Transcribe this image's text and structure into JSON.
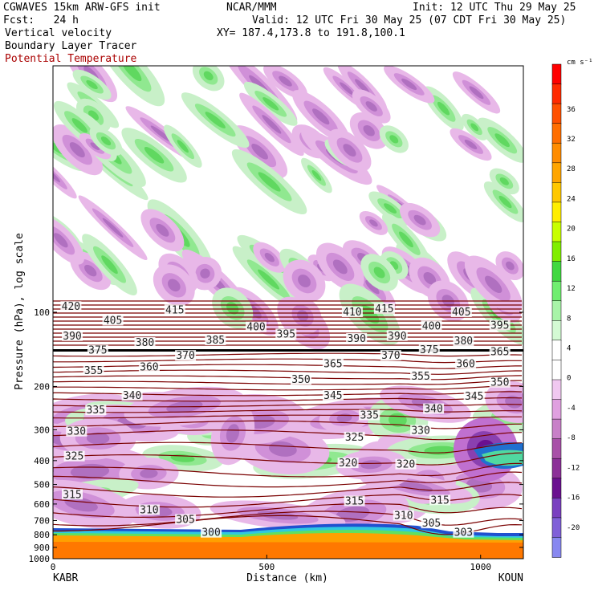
{
  "header": {
    "model": "CGWAVES 15km ARW-GFS init",
    "center": "NCAR/MMM",
    "init": "Init: 12 UTC Thu 29 May 25",
    "fcst": "Fcst:   24 h",
    "valid": "Valid: 12 UTC Fri 30 May 25 (07 CDT Fri 30 May 25)",
    "field1": "Vertical velocity",
    "xy": "XY= 187.4,173.8 to 191.8,100.1",
    "field2": "Boundary Layer Tracer",
    "field3": "Potential Temperature"
  },
  "colors": {
    "theta_contour": "#7a0000",
    "text": "#000000"
  },
  "chart_data": {
    "type": "heatmap",
    "xlabel": "Distance (km)",
    "ylabel": "Pressure (hPa), log scale",
    "x_ticks": [
      0,
      500,
      1000
    ],
    "xlim": [
      0,
      1100
    ],
    "y_ticks": [
      100,
      200,
      300,
      400,
      500,
      600,
      700,
      800,
      900,
      1000
    ],
    "y_scale": "log",
    "ylim": [
      1000,
      10
    ],
    "endpoints": {
      "left": "KABR",
      "right": "KOUN"
    },
    "colorbar": {
      "unit": "cm s⁻¹",
      "labels": [
        36,
        32,
        28,
        24,
        20,
        16,
        12,
        8,
        4,
        0,
        -4,
        -8,
        -12,
        -16,
        -20
      ],
      "colors": [
        "#ff0000",
        "#ff2a00",
        "#ff5000",
        "#ff6e00",
        "#ff8c00",
        "#ffa500",
        "#ffc800",
        "#ffee00",
        "#c8ff00",
        "#80ee00",
        "#40d840",
        "#70ee70",
        "#a8f4a8",
        "#d4fad4",
        "#ffffff",
        "#ffffff",
        "#f0c8f0",
        "#e0a0e0",
        "#c880c8",
        "#a850a8",
        "#8c3098",
        "#6a1090",
        "#7a40c0",
        "#8060d8",
        "#8888f0"
      ]
    },
    "theta_labels": [
      {
        "v": "420",
        "x": 42,
        "p": 95
      },
      {
        "v": "415",
        "x": 285,
        "p": 98
      },
      {
        "v": "410",
        "x": 700,
        "p": 100
      },
      {
        "v": "415",
        "x": 775,
        "p": 97
      },
      {
        "v": "405",
        "x": 955,
        "p": 100
      },
      {
        "v": "405",
        "x": 140,
        "p": 108
      },
      {
        "v": "400",
        "x": 475,
        "p": 115
      },
      {
        "v": "400",
        "x": 885,
        "p": 114
      },
      {
        "v": "395",
        "x": 545,
        "p": 123
      },
      {
        "v": "395",
        "x": 1045,
        "p": 113
      },
      {
        "v": "390",
        "x": 45,
        "p": 125
      },
      {
        "v": "390",
        "x": 710,
        "p": 128
      },
      {
        "v": "390",
        "x": 805,
        "p": 125
      },
      {
        "v": "380",
        "x": 215,
        "p": 133
      },
      {
        "v": "385",
        "x": 380,
        "p": 130
      },
      {
        "v": "380",
        "x": 960,
        "p": 131
      },
      {
        "v": "375",
        "x": 105,
        "p": 143
      },
      {
        "v": "375",
        "x": 880,
        "p": 142
      },
      {
        "v": "370",
        "x": 310,
        "p": 150
      },
      {
        "v": "370",
        "x": 790,
        "p": 150
      },
      {
        "v": "365",
        "x": 1045,
        "p": 145
      },
      {
        "v": "360",
        "x": 225,
        "p": 167
      },
      {
        "v": "365",
        "x": 655,
        "p": 162
      },
      {
        "v": "360",
        "x": 965,
        "p": 162
      },
      {
        "v": "355",
        "x": 95,
        "p": 173
      },
      {
        "v": "355",
        "x": 860,
        "p": 182
      },
      {
        "v": "350",
        "x": 580,
        "p": 188
      },
      {
        "v": "350",
        "x": 1045,
        "p": 193
      },
      {
        "v": "340",
        "x": 185,
        "p": 218
      },
      {
        "v": "345",
        "x": 655,
        "p": 218
      },
      {
        "v": "345",
        "x": 985,
        "p": 220
      },
      {
        "v": "335",
        "x": 100,
        "p": 250
      },
      {
        "v": "340",
        "x": 890,
        "p": 247
      },
      {
        "v": "335",
        "x": 740,
        "p": 262
      },
      {
        "v": "330",
        "x": 55,
        "p": 305
      },
      {
        "v": "330",
        "x": 860,
        "p": 302
      },
      {
        "v": "325",
        "x": 705,
        "p": 322
      },
      {
        "v": "325",
        "x": 50,
        "p": 385
      },
      {
        "v": "320",
        "x": 690,
        "p": 410
      },
      {
        "v": "320",
        "x": 825,
        "p": 415
      },
      {
        "v": "315",
        "x": 45,
        "p": 550
      },
      {
        "v": "315",
        "x": 705,
        "p": 585
      },
      {
        "v": "315",
        "x": 905,
        "p": 580
      },
      {
        "v": "310",
        "x": 225,
        "p": 635
      },
      {
        "v": "310",
        "x": 820,
        "p": 670
      },
      {
        "v": "305",
        "x": 310,
        "p": 695
      },
      {
        "v": "305",
        "x": 885,
        "p": 720
      },
      {
        "v": "300",
        "x": 370,
        "p": 785
      },
      {
        "v": "303",
        "x": 960,
        "p": 785
      }
    ]
  }
}
